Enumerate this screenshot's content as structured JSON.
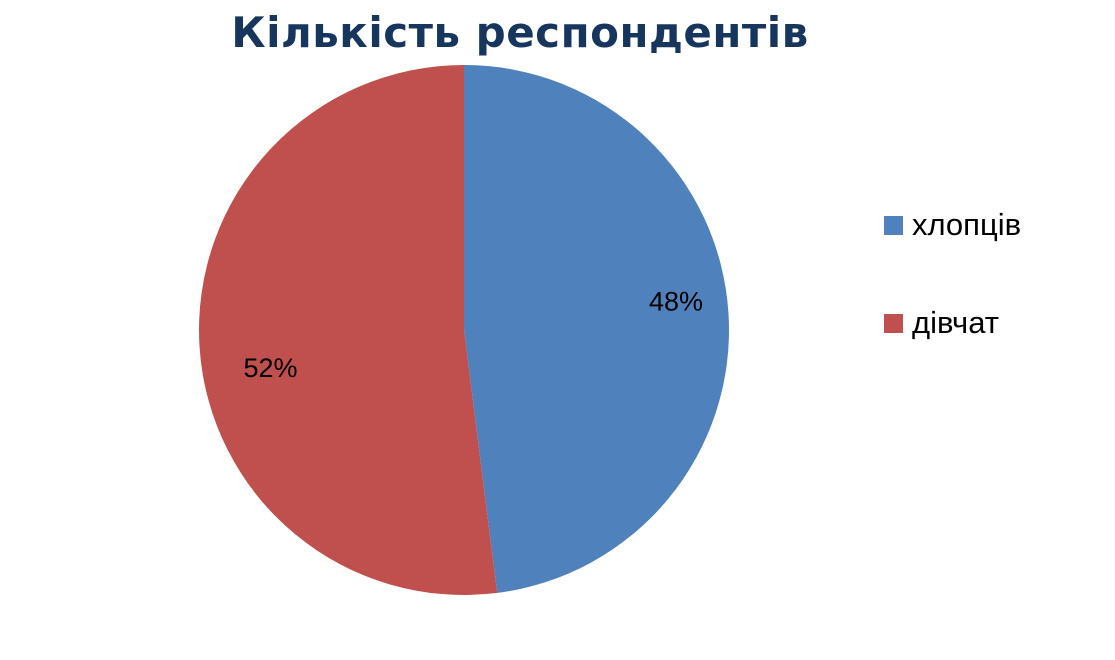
{
  "chart_data": {
    "type": "pie",
    "title": "Кількість респондентів",
    "categories": [
      "хлопців",
      "дівчат"
    ],
    "values": [
      48,
      52
    ],
    "data_labels": [
      "48%",
      "52%"
    ],
    "colors": [
      "#4f81bd",
      "#c0504d"
    ],
    "legend_position": "right"
  }
}
